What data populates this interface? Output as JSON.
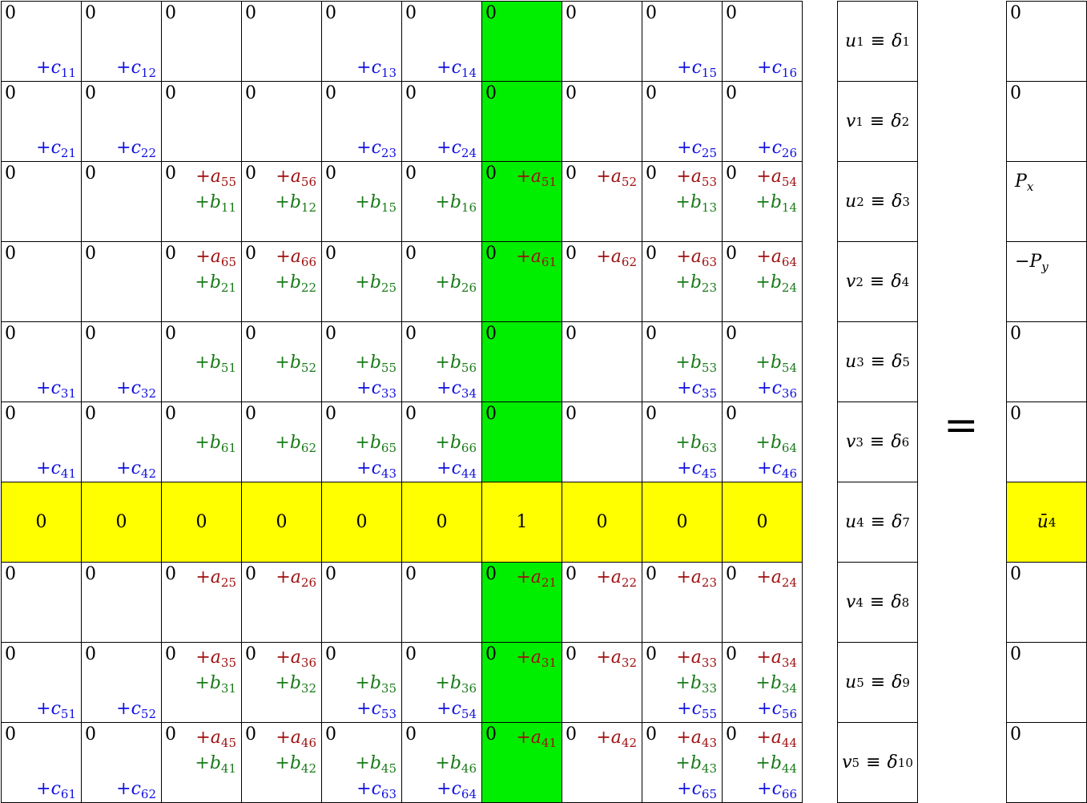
{
  "matrix": {
    "rows": [
      {
        "cells": [
          {
            "zero": "0",
            "c": "11"
          },
          {
            "zero": "0",
            "c": "12"
          },
          {
            "zero": "0"
          },
          {
            "zero": "0"
          },
          {
            "zero": "0",
            "c": "13"
          },
          {
            "zero": "0",
            "c": "14"
          },
          {
            "zero": "0"
          },
          {
            "zero": "0"
          },
          {
            "zero": "0",
            "c": "15"
          },
          {
            "zero": "0",
            "c": "16"
          }
        ]
      },
      {
        "cells": [
          {
            "zero": "0",
            "c": "21"
          },
          {
            "zero": "0",
            "c": "22"
          },
          {
            "zero": "0"
          },
          {
            "zero": "0"
          },
          {
            "zero": "0",
            "c": "23"
          },
          {
            "zero": "0",
            "c": "24"
          },
          {
            "zero": "0"
          },
          {
            "zero": "0"
          },
          {
            "zero": "0",
            "c": "25"
          },
          {
            "zero": "0",
            "c": "26"
          }
        ]
      },
      {
        "cells": [
          {
            "zero": "0"
          },
          {
            "zero": "0"
          },
          {
            "zero": "0",
            "a": "55",
            "b": "11"
          },
          {
            "zero": "0",
            "a": "56",
            "b": "12"
          },
          {
            "zero": "0",
            "b": "15"
          },
          {
            "zero": "0",
            "b": "16"
          },
          {
            "zero": "0",
            "a": "51"
          },
          {
            "zero": "0",
            "a": "52"
          },
          {
            "zero": "0",
            "a": "53",
            "b": "13"
          },
          {
            "zero": "0",
            "a": "54",
            "b": "14"
          }
        ]
      },
      {
        "cells": [
          {
            "zero": "0"
          },
          {
            "zero": "0"
          },
          {
            "zero": "0",
            "a": "65",
            "b": "21"
          },
          {
            "zero": "0",
            "a": "66",
            "b": "22"
          },
          {
            "zero": "0",
            "b": "25"
          },
          {
            "zero": "0",
            "b": "26"
          },
          {
            "zero": "0",
            "a": "61"
          },
          {
            "zero": "0",
            "a": "62"
          },
          {
            "zero": "0",
            "a": "63",
            "b": "23"
          },
          {
            "zero": "0",
            "a": "64",
            "b": "24"
          }
        ]
      },
      {
        "cells": [
          {
            "zero": "0",
            "c": "31"
          },
          {
            "zero": "0",
            "c": "32"
          },
          {
            "zero": "0",
            "b": "51"
          },
          {
            "zero": "0",
            "b": "52"
          },
          {
            "zero": "0",
            "b": "55",
            "c": "33"
          },
          {
            "zero": "0",
            "b": "56",
            "c": "34"
          },
          {
            "zero": "0"
          },
          {
            "zero": "0"
          },
          {
            "zero": "0",
            "b": "53",
            "c": "35"
          },
          {
            "zero": "0",
            "b": "54",
            "c": "36"
          }
        ]
      },
      {
        "cells": [
          {
            "zero": "0",
            "c": "41"
          },
          {
            "zero": "0",
            "c": "42"
          },
          {
            "zero": "0",
            "b": "61"
          },
          {
            "zero": "0",
            "b": "62"
          },
          {
            "zero": "0",
            "b": "65",
            "c": "43"
          },
          {
            "zero": "0",
            "b": "66",
            "c": "44"
          },
          {
            "zero": "0"
          },
          {
            "zero": "0"
          },
          {
            "zero": "0",
            "b": "63",
            "c": "45"
          },
          {
            "zero": "0",
            "b": "64",
            "c": "46"
          }
        ]
      },
      {
        "cells": [
          {
            "center": "0"
          },
          {
            "center": "0"
          },
          {
            "center": "0"
          },
          {
            "center": "0"
          },
          {
            "center": "0"
          },
          {
            "center": "0"
          },
          {
            "center": "1"
          },
          {
            "center": "0"
          },
          {
            "center": "0"
          },
          {
            "center": "0"
          }
        ]
      },
      {
        "cells": [
          {
            "zero": "0"
          },
          {
            "zero": "0"
          },
          {
            "zero": "0",
            "a": "25"
          },
          {
            "zero": "0",
            "a": "26"
          },
          {
            "zero": "0"
          },
          {
            "zero": "0"
          },
          {
            "zero": "0",
            "a": "21"
          },
          {
            "zero": "0",
            "a": "22"
          },
          {
            "zero": "0",
            "a": "23"
          },
          {
            "zero": "0",
            "a": "24"
          }
        ]
      },
      {
        "cells": [
          {
            "zero": "0",
            "c": "51"
          },
          {
            "zero": "0",
            "c": "52"
          },
          {
            "zero": "0",
            "a": "35",
            "b": "31"
          },
          {
            "zero": "0",
            "a": "36",
            "b": "32"
          },
          {
            "zero": "0",
            "b": "35",
            "c": "53"
          },
          {
            "zero": "0",
            "b": "36",
            "c": "54"
          },
          {
            "zero": "0",
            "a": "31"
          },
          {
            "zero": "0",
            "a": "32"
          },
          {
            "zero": "0",
            "a": "33",
            "b": "33",
            "c": "55"
          },
          {
            "zero": "0",
            "a": "34",
            "b": "34",
            "c": "56"
          }
        ]
      },
      {
        "cells": [
          {
            "zero": "0",
            "c": "61"
          },
          {
            "zero": "0",
            "c": "62"
          },
          {
            "zero": "0",
            "a": "45",
            "b": "41"
          },
          {
            "zero": "0",
            "a": "46",
            "b": "42"
          },
          {
            "zero": "0",
            "b": "45",
            "c": "63"
          },
          {
            "zero": "0",
            "b": "46",
            "c": "64"
          },
          {
            "zero": "0",
            "a": "41"
          },
          {
            "zero": "0",
            "a": "42"
          },
          {
            "zero": "0",
            "a": "43",
            "b": "43",
            "c": "65"
          },
          {
            "zero": "0",
            "a": "44",
            "b": "44",
            "c": "66"
          }
        ]
      }
    ]
  },
  "unknowns": [
    {
      "var": "u",
      "i": "1",
      "d": "1"
    },
    {
      "var": "v",
      "i": "1",
      "d": "2"
    },
    {
      "var": "u",
      "i": "2",
      "d": "3"
    },
    {
      "var": "v",
      "i": "2",
      "d": "4"
    },
    {
      "var": "u",
      "i": "3",
      "d": "5"
    },
    {
      "var": "v",
      "i": "3",
      "d": "6"
    },
    {
      "var": "u",
      "i": "4",
      "d": "7"
    },
    {
      "var": "v",
      "i": "4",
      "d": "8"
    },
    {
      "var": "u",
      "i": "5",
      "d": "9"
    },
    {
      "var": "v",
      "i": "5",
      "d": "10"
    }
  ],
  "equals_sign": "=",
  "rhs": [
    {
      "text": "0"
    },
    {
      "text": "0"
    },
    {
      "text": "P",
      "sub": "x"
    },
    {
      "text": "−P",
      "sub": "y"
    },
    {
      "text": "0"
    },
    {
      "text": "0"
    },
    {
      "text": "ū",
      "sub": "4",
      "highlight": true
    },
    {
      "text": "0"
    },
    {
      "text": "0"
    },
    {
      "text": "0"
    }
  ],
  "symbols": {
    "plus": "+",
    "a": "a",
    "b": "b",
    "c": "c",
    "equiv": "≡",
    "delta": "δ"
  },
  "colors": {
    "a_terms": "#a01010",
    "b_terms": "#1a7a1a",
    "c_terms": "#1010e0",
    "green_column": "#00ee00",
    "yellow_row": "#ffff00"
  },
  "highlights": {
    "column_index": 6,
    "row_index": 6
  }
}
